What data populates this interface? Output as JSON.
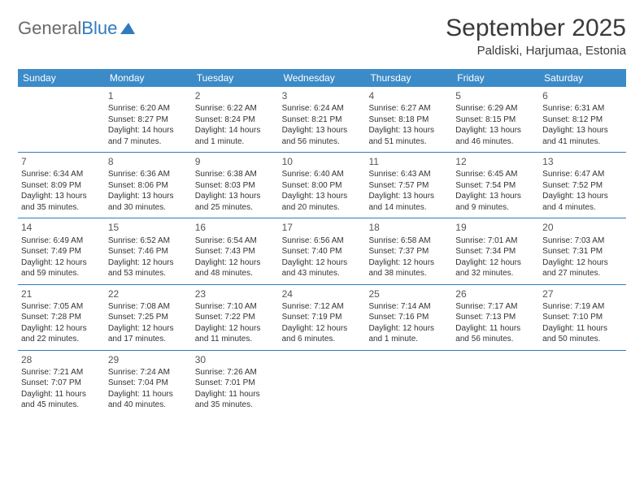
{
  "brand": {
    "part1": "General",
    "part2": "Blue"
  },
  "title": "September 2025",
  "location": "Paldiski, Harjumaa, Estonia",
  "colors": {
    "header_bg": "#3b8bc8",
    "divider": "#2f7bbf",
    "text": "#333333",
    "logo_gray": "#6a6a6a",
    "logo_blue": "#2f7bbf"
  },
  "day_names": [
    "Sunday",
    "Monday",
    "Tuesday",
    "Wednesday",
    "Thursday",
    "Friday",
    "Saturday"
  ],
  "weeks": [
    [
      null,
      {
        "n": "1",
        "sr": "Sunrise: 6:20 AM",
        "ss": "Sunset: 8:27 PM",
        "dl": "Daylight: 14 hours and 7 minutes."
      },
      {
        "n": "2",
        "sr": "Sunrise: 6:22 AM",
        "ss": "Sunset: 8:24 PM",
        "dl": "Daylight: 14 hours and 1 minute."
      },
      {
        "n": "3",
        "sr": "Sunrise: 6:24 AM",
        "ss": "Sunset: 8:21 PM",
        "dl": "Daylight: 13 hours and 56 minutes."
      },
      {
        "n": "4",
        "sr": "Sunrise: 6:27 AM",
        "ss": "Sunset: 8:18 PM",
        "dl": "Daylight: 13 hours and 51 minutes."
      },
      {
        "n": "5",
        "sr": "Sunrise: 6:29 AM",
        "ss": "Sunset: 8:15 PM",
        "dl": "Daylight: 13 hours and 46 minutes."
      },
      {
        "n": "6",
        "sr": "Sunrise: 6:31 AM",
        "ss": "Sunset: 8:12 PM",
        "dl": "Daylight: 13 hours and 41 minutes."
      }
    ],
    [
      {
        "n": "7",
        "sr": "Sunrise: 6:34 AM",
        "ss": "Sunset: 8:09 PM",
        "dl": "Daylight: 13 hours and 35 minutes."
      },
      {
        "n": "8",
        "sr": "Sunrise: 6:36 AM",
        "ss": "Sunset: 8:06 PM",
        "dl": "Daylight: 13 hours and 30 minutes."
      },
      {
        "n": "9",
        "sr": "Sunrise: 6:38 AM",
        "ss": "Sunset: 8:03 PM",
        "dl": "Daylight: 13 hours and 25 minutes."
      },
      {
        "n": "10",
        "sr": "Sunrise: 6:40 AM",
        "ss": "Sunset: 8:00 PM",
        "dl": "Daylight: 13 hours and 20 minutes."
      },
      {
        "n": "11",
        "sr": "Sunrise: 6:43 AM",
        "ss": "Sunset: 7:57 PM",
        "dl": "Daylight: 13 hours and 14 minutes."
      },
      {
        "n": "12",
        "sr": "Sunrise: 6:45 AM",
        "ss": "Sunset: 7:54 PM",
        "dl": "Daylight: 13 hours and 9 minutes."
      },
      {
        "n": "13",
        "sr": "Sunrise: 6:47 AM",
        "ss": "Sunset: 7:52 PM",
        "dl": "Daylight: 13 hours and 4 minutes."
      }
    ],
    [
      {
        "n": "14",
        "sr": "Sunrise: 6:49 AM",
        "ss": "Sunset: 7:49 PM",
        "dl": "Daylight: 12 hours and 59 minutes."
      },
      {
        "n": "15",
        "sr": "Sunrise: 6:52 AM",
        "ss": "Sunset: 7:46 PM",
        "dl": "Daylight: 12 hours and 53 minutes."
      },
      {
        "n": "16",
        "sr": "Sunrise: 6:54 AM",
        "ss": "Sunset: 7:43 PM",
        "dl": "Daylight: 12 hours and 48 minutes."
      },
      {
        "n": "17",
        "sr": "Sunrise: 6:56 AM",
        "ss": "Sunset: 7:40 PM",
        "dl": "Daylight: 12 hours and 43 minutes."
      },
      {
        "n": "18",
        "sr": "Sunrise: 6:58 AM",
        "ss": "Sunset: 7:37 PM",
        "dl": "Daylight: 12 hours and 38 minutes."
      },
      {
        "n": "19",
        "sr": "Sunrise: 7:01 AM",
        "ss": "Sunset: 7:34 PM",
        "dl": "Daylight: 12 hours and 32 minutes."
      },
      {
        "n": "20",
        "sr": "Sunrise: 7:03 AM",
        "ss": "Sunset: 7:31 PM",
        "dl": "Daylight: 12 hours and 27 minutes."
      }
    ],
    [
      {
        "n": "21",
        "sr": "Sunrise: 7:05 AM",
        "ss": "Sunset: 7:28 PM",
        "dl": "Daylight: 12 hours and 22 minutes."
      },
      {
        "n": "22",
        "sr": "Sunrise: 7:08 AM",
        "ss": "Sunset: 7:25 PM",
        "dl": "Daylight: 12 hours and 17 minutes."
      },
      {
        "n": "23",
        "sr": "Sunrise: 7:10 AM",
        "ss": "Sunset: 7:22 PM",
        "dl": "Daylight: 12 hours and 11 minutes."
      },
      {
        "n": "24",
        "sr": "Sunrise: 7:12 AM",
        "ss": "Sunset: 7:19 PM",
        "dl": "Daylight: 12 hours and 6 minutes."
      },
      {
        "n": "25",
        "sr": "Sunrise: 7:14 AM",
        "ss": "Sunset: 7:16 PM",
        "dl": "Daylight: 12 hours and 1 minute."
      },
      {
        "n": "26",
        "sr": "Sunrise: 7:17 AM",
        "ss": "Sunset: 7:13 PM",
        "dl": "Daylight: 11 hours and 56 minutes."
      },
      {
        "n": "27",
        "sr": "Sunrise: 7:19 AM",
        "ss": "Sunset: 7:10 PM",
        "dl": "Daylight: 11 hours and 50 minutes."
      }
    ],
    [
      {
        "n": "28",
        "sr": "Sunrise: 7:21 AM",
        "ss": "Sunset: 7:07 PM",
        "dl": "Daylight: 11 hours and 45 minutes."
      },
      {
        "n": "29",
        "sr": "Sunrise: 7:24 AM",
        "ss": "Sunset: 7:04 PM",
        "dl": "Daylight: 11 hours and 40 minutes."
      },
      {
        "n": "30",
        "sr": "Sunrise: 7:26 AM",
        "ss": "Sunset: 7:01 PM",
        "dl": "Daylight: 11 hours and 35 minutes."
      },
      null,
      null,
      null,
      null
    ]
  ]
}
